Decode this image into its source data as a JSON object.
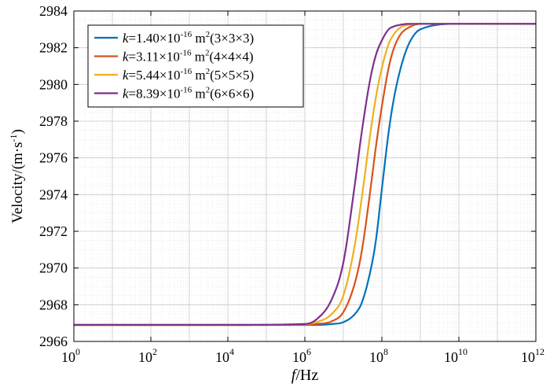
{
  "chart_data": {
    "type": "line",
    "xscale": "log",
    "xlim": [
      1,
      1000000000000.0
    ],
    "ylim": [
      2966,
      2984
    ],
    "grid": "major and minor",
    "legend_position": "top-left",
    "x_axis_label_italic": "f",
    "x_axis_label_unit": "/Hz",
    "y_axis_label": "Velocity/(m·s",
    "y_axis_label_sup": "-1",
    "y_axis_label_tail": ")",
    "y_ticks": [
      "2966",
      "2968",
      "2970",
      "2972",
      "2974",
      "2976",
      "2978",
      "2980",
      "2982",
      "2984"
    ],
    "x_ticks": [
      {
        "base": "10",
        "exp": "0",
        "value": 1
      },
      {
        "base": "10",
        "exp": "2",
        "value": 100
      },
      {
        "base": "10",
        "exp": "4",
        "value": 10000
      },
      {
        "base": "10",
        "exp": "6",
        "value": 1000000
      },
      {
        "base": "10",
        "exp": "8",
        "value": 100000000
      },
      {
        "base": "10",
        "exp": "10",
        "value": 10000000000
      },
      {
        "base": "10",
        "exp": "12",
        "value": 1000000000000
      }
    ],
    "x": [
      1,
      10000.0,
      1000000.0,
      2000000.0,
      5000000.0,
      10000000.0,
      20000000.0,
      30000000.0,
      50000000.0,
      70000000.0,
      100000000.0,
      150000000.0,
      200000000.0,
      300000000.0,
      500000000.0,
      1000000000.0,
      10000000000.0,
      1000000000000.0
    ],
    "series": [
      {
        "legend_k": "k",
        "legend_value": "=1.40×10",
        "legend_exp": "-16",
        "legend_unit": " m",
        "legend_unit_exp": "2",
        "legend_grid": "(3×3×3)",
        "color": "#0072BD",
        "values": [
          2966.9,
          2966.9,
          2966.9,
          2966.9,
          2966.95,
          2967.05,
          2967.5,
          2968.1,
          2969.8,
          2971.5,
          2974.3,
          2977.4,
          2979.1,
          2980.8,
          2982.2,
          2983.0,
          2983.3,
          2983.3
        ]
      },
      {
        "legend_k": "k",
        "legend_value": "=3.11×10",
        "legend_exp": "-16",
        "legend_unit": " m",
        "legend_unit_exp": "2",
        "legend_grid": "(4×4×4)",
        "color": "#D95319",
        "values": [
          2966.9,
          2966.9,
          2966.9,
          2966.95,
          2967.1,
          2967.6,
          2969.2,
          2970.9,
          2974.2,
          2976.6,
          2978.8,
          2980.9,
          2981.9,
          2982.7,
          2983.1,
          2983.3,
          2983.3,
          2983.3
        ]
      },
      {
        "legend_k": "k",
        "legend_value": "=5.44×10",
        "legend_exp": "-16",
        "legend_unit": " m",
        "legend_unit_exp": "2",
        "legend_grid": "(5×5×5)",
        "color": "#EDB120",
        "values": [
          2966.9,
          2966.9,
          2966.95,
          2967.05,
          2967.5,
          2968.5,
          2971.3,
          2973.8,
          2977.3,
          2979.3,
          2980.9,
          2982.2,
          2982.7,
          2983.1,
          2983.25,
          2983.3,
          2983.3,
          2983.3
        ]
      },
      {
        "legend_k": "k",
        "legend_value": "=8.39×10",
        "legend_exp": "-16",
        "legend_unit": " m",
        "legend_unit_exp": "2",
        "legend_grid": "(6×6×6)",
        "color": "#7E2F8E",
        "values": [
          2966.9,
          2966.9,
          2966.95,
          2967.2,
          2968.3,
          2970.3,
          2974.6,
          2977.4,
          2980.3,
          2981.6,
          2982.4,
          2983.0,
          2983.15,
          2983.25,
          2983.3,
          2983.3,
          2983.3,
          2983.3
        ]
      }
    ]
  }
}
